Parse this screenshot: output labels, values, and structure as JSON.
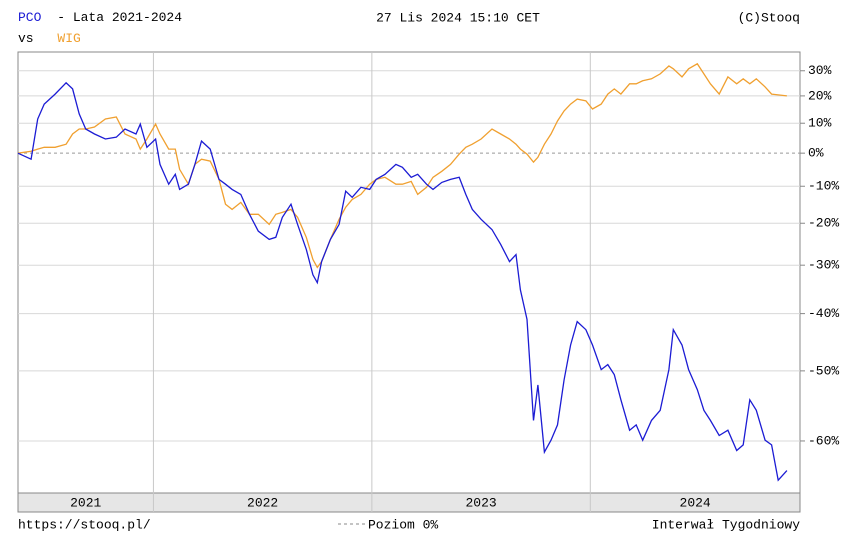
{
  "chart_data": {
    "type": "line",
    "title": "- Lata 2021-2024",
    "date": "27 Lis 2024 15:10 CET",
    "source": "(C)Stooq",
    "legend_prefix": "vs",
    "url": "https://stooq.pl/",
    "interval": "Interwał Tygodniowy",
    "zero_line": {
      "value": 0,
      "label": "Poziom 0%"
    },
    "log_scale": true,
    "grid": true,
    "xlim": [
      2021.38,
      2024.96
    ],
    "xticks": [
      2021,
      2022,
      2023,
      2024
    ],
    "ylim": [
      -66,
      38
    ],
    "yticks": [
      {
        "value": 30,
        "label": "30%"
      },
      {
        "value": 20,
        "label": "20%"
      },
      {
        "value": 10,
        "label": "10%"
      },
      {
        "value": 0,
        "label": "0%"
      },
      {
        "value": -10,
        "label": "-10%"
      },
      {
        "value": -20,
        "label": "-20%"
      },
      {
        "value": -30,
        "label": "-30%"
      },
      {
        "value": -40,
        "label": "-40%"
      },
      {
        "value": -50,
        "label": "-50%"
      },
      {
        "value": -60,
        "label": "-60%"
      }
    ],
    "x": [
      2021.38,
      2021.44,
      2021.47,
      2021.5,
      2021.55,
      2021.6,
      2021.63,
      2021.66,
      2021.69,
      2021.73,
      2021.78,
      2021.83,
      2021.87,
      2021.92,
      2021.94,
      2021.97,
      2022.01,
      2022.03,
      2022.07,
      2022.1,
      2022.12,
      2022.16,
      2022.19,
      2022.22,
      2022.26,
      2022.3,
      2022.33,
      2022.36,
      2022.4,
      2022.44,
      2022.48,
      2022.53,
      2022.56,
      2022.59,
      2022.63,
      2022.66,
      2022.7,
      2022.73,
      2022.75,
      2022.77,
      2022.81,
      2022.85,
      2022.88,
      2022.91,
      2022.95,
      2022.99,
      2023.02,
      2023.06,
      2023.11,
      2023.14,
      2023.18,
      2023.21,
      2023.25,
      2023.28,
      2023.32,
      2023.36,
      2023.4,
      2023.43,
      2023.46,
      2023.5,
      2023.55,
      2023.59,
      2023.63,
      2023.66,
      2023.68,
      2023.71,
      2023.74,
      2023.76,
      2023.79,
      2023.82,
      2023.85,
      2023.88,
      2023.91,
      2023.94,
      2023.98,
      2024.01,
      2024.05,
      2024.08,
      2024.11,
      2024.14,
      2024.18,
      2024.21,
      2024.24,
      2024.28,
      2024.32,
      2024.36,
      2024.38,
      2024.42,
      2024.45,
      2024.49,
      2024.52,
      2024.55,
      2024.59,
      2024.63,
      2024.67,
      2024.7,
      2024.73,
      2024.76,
      2024.8,
      2024.83,
      2024.86,
      2024.9
    ],
    "series": [
      {
        "name": "WIG",
        "color": "#f0a030",
        "values": [
          0,
          0.6,
          1.3,
          1.9,
          1.9,
          2.9,
          6.3,
          8.0,
          8.0,
          8.7,
          11.5,
          12.2,
          6.3,
          4.6,
          1.3,
          4.6,
          9.7,
          6.3,
          1.3,
          1.3,
          -5.0,
          -9.4,
          -3.5,
          -1.9,
          -2.5,
          -8.0,
          -15.0,
          -16.4,
          -14.5,
          -17.7,
          -17.7,
          -20.3,
          -17.7,
          -17.2,
          -16.4,
          -18.5,
          -23.5,
          -28.7,
          -30.5,
          -29.2,
          -24.0,
          -19.0,
          -15.8,
          -13.7,
          -12.3,
          -9.4,
          -8.0,
          -7.4,
          -9.4,
          -9.4,
          -8.6,
          -12.3,
          -10.3,
          -7.4,
          -5.6,
          -3.5,
          -0.3,
          1.9,
          2.9,
          4.6,
          8.0,
          6.3,
          4.6,
          2.9,
          1.3,
          -0.3,
          -2.8,
          -1.3,
          2.9,
          6.3,
          10.8,
          14.4,
          16.9,
          18.8,
          18.1,
          15.1,
          16.9,
          20.7,
          22.7,
          20.7,
          24.7,
          24.7,
          25.9,
          26.7,
          28.7,
          32.0,
          30.8,
          27.5,
          30.8,
          32.9,
          28.7,
          24.7,
          20.7,
          27.5,
          24.7,
          26.7,
          24.7,
          26.7,
          23.5,
          20.7,
          20.4,
          20.0
        ]
      },
      {
        "name": "PCO",
        "color": "#1c1cd4",
        "values": [
          0,
          -1.9,
          11.5,
          16.9,
          20.7,
          25.1,
          22.7,
          13.3,
          8.0,
          6.3,
          4.6,
          5.2,
          8.0,
          6.3,
          9.7,
          1.9,
          4.6,
          -3.5,
          -9.4,
          -6.5,
          -10.9,
          -9.4,
          -3.5,
          3.9,
          1.3,
          -8.0,
          -9.4,
          -10.9,
          -12.3,
          -17.7,
          -22.0,
          -24.0,
          -23.5,
          -18.5,
          -15.0,
          -20.3,
          -26.4,
          -32.1,
          -33.8,
          -29.2,
          -24.0,
          -20.3,
          -11.4,
          -13.1,
          -10.3,
          -10.9,
          -8.0,
          -6.5,
          -3.5,
          -4.4,
          -7.4,
          -6.5,
          -9.4,
          -10.9,
          -8.9,
          -8.0,
          -7.4,
          -12.3,
          -16.4,
          -19.0,
          -21.6,
          -25.2,
          -29.2,
          -27.6,
          -35.3,
          -41.1,
          -57.3,
          -52.2,
          -61.4,
          -59.9,
          -57.9,
          -51.4,
          -45.7,
          -41.5,
          -43.0,
          -45.7,
          -49.8,
          -49.0,
          -50.6,
          -54.4,
          -58.6,
          -57.9,
          -59.9,
          -57.3,
          -55.9,
          -49.8,
          -43.0,
          -45.7,
          -49.8,
          -52.9,
          -55.9,
          -57.3,
          -59.3,
          -58.6,
          -61.2,
          -60.5,
          -54.4,
          -55.9,
          -59.9,
          -60.5,
          -64.7,
          -63.6
        ]
      }
    ]
  }
}
